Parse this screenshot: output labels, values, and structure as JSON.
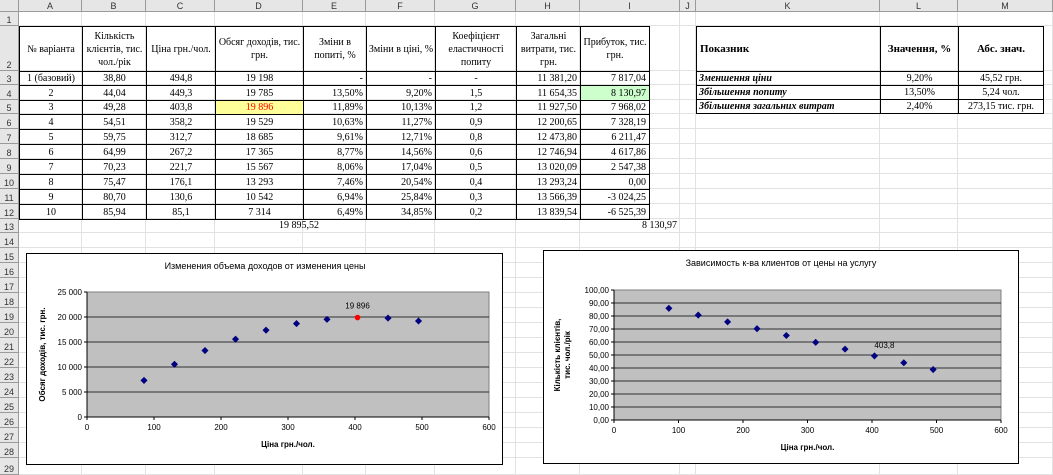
{
  "columns": [
    "A",
    "B",
    "C",
    "D",
    "E",
    "F",
    "G",
    "H",
    "I",
    "J",
    "K",
    "L",
    "M"
  ],
  "rows": [
    "1",
    "2",
    "3",
    "4",
    "5",
    "6",
    "7",
    "8",
    "9",
    "10",
    "11",
    "12",
    "13",
    "14",
    "15",
    "16",
    "17",
    "18",
    "19",
    "20",
    "21",
    "22",
    "23",
    "24",
    "25",
    "26",
    "27",
    "28",
    "29"
  ],
  "main_table": {
    "headers": [
      "№ варіанта",
      "Кількість клієнтів, тис. чол./рік",
      "Ціна грн./чол.",
      "Обсяг доходів, тис. грн.",
      "Зміни в попиті, %",
      "Зміни в ціні, %",
      "Коефіцієнт еластичності попиту",
      "Загальні витрати, тис. грн.",
      "Прибуток, тис. грн."
    ],
    "rows": [
      [
        "1 (базовий)",
        "38,80",
        "494,8",
        "19 198",
        "-",
        "-",
        "-",
        "11 381,20",
        "7 817,04"
      ],
      [
        "2",
        "44,04",
        "449,3",
        "19 785",
        "13,50%",
        "9,20%",
        "1,5",
        "11 654,35",
        "8 130,97"
      ],
      [
        "3",
        "49,28",
        "403,8",
        "19 896",
        "11,89%",
        "10,13%",
        "1,2",
        "11 927,50",
        "7 968,02"
      ],
      [
        "4",
        "54,51",
        "358,2",
        "19 529",
        "10,63%",
        "11,27%",
        "0,9",
        "12 200,65",
        "7 328,19"
      ],
      [
        "5",
        "59,75",
        "312,7",
        "18 685",
        "9,61%",
        "12,71%",
        "0,8",
        "12 473,80",
        "6 211,47"
      ],
      [
        "6",
        "64,99",
        "267,2",
        "17 365",
        "8,77%",
        "14,56%",
        "0,6",
        "12 746,94",
        "4 617,86"
      ],
      [
        "7",
        "70,23",
        "221,7",
        "15 567",
        "8,06%",
        "17,04%",
        "0,5",
        "13 020,09",
        "2 547,38"
      ],
      [
        "8",
        "75,47",
        "176,1",
        "13 293",
        "7,46%",
        "20,54%",
        "0,4",
        "13 293,24",
        "0,00"
      ],
      [
        "9",
        "80,70",
        "130,6",
        "10 542",
        "6,94%",
        "25,84%",
        "0,3",
        "13 566,39",
        "-3 024,25"
      ],
      [
        "10",
        "85,94",
        "85,1",
        "7 314",
        "6,49%",
        "34,85%",
        "0,2",
        "13 839,54",
        "-6 525,39"
      ]
    ],
    "totals": {
      "income": "19 895,52",
      "profit": "8 130,97"
    },
    "highlight_income_color": "#ffff99",
    "highlight_income_text": "#ff0000",
    "highlight_profit_color": "#ccffcc"
  },
  "side_table": {
    "headers": [
      "Показник",
      "Значення, %",
      "Абс. знач."
    ],
    "rows": [
      [
        "Зменшення ціни",
        "9,20%",
        "45,52 грн."
      ],
      [
        "Збільшення попиту",
        "13,50%",
        "5,24 чол."
      ],
      [
        "Збільшення загальних витрат",
        "2,40%",
        "273,15 тис. грн."
      ]
    ]
  },
  "chart_data": [
    {
      "type": "scatter",
      "title": "Изменения объема доходов от изменения цены",
      "xlabel": "Ціна грн./чол.",
      "ylabel": "Обсяг доходів, тис. грн.",
      "xlim": [
        0,
        600
      ],
      "ylim": [
        0,
        25000
      ],
      "x_ticks": [
        "0",
        "100",
        "200",
        "300",
        "400",
        "500",
        "600"
      ],
      "y_ticks": [
        "0",
        "5 000",
        "10 000",
        "15 000",
        "20 000",
        "25 000"
      ],
      "grid": true,
      "points": [
        {
          "x": 494.8,
          "y": 19198
        },
        {
          "x": 449.3,
          "y": 19785
        },
        {
          "x": 403.8,
          "y": 19896
        },
        {
          "x": 358.2,
          "y": 19529
        },
        {
          "x": 312.7,
          "y": 18685
        },
        {
          "x": 267.2,
          "y": 17365
        },
        {
          "x": 221.7,
          "y": 15567
        },
        {
          "x": 176.1,
          "y": 13293
        },
        {
          "x": 130.6,
          "y": 10542
        },
        {
          "x": 85.1,
          "y": 7314
        }
      ],
      "highlight_index": 2,
      "highlight_label": "19 896",
      "point_color": "#000080",
      "highlight_color": "#ff0000",
      "plot_bg": "#c0c0c0"
    },
    {
      "type": "scatter",
      "title": "Зависимость к-ва клиентов от цены на услугу",
      "xlabel": "Ціна грн./чол.",
      "ylabel": "Кількість клієнтів, тис. чол./рік",
      "xlim": [
        0,
        600
      ],
      "ylim": [
        0,
        100
      ],
      "x_ticks": [
        "0",
        "100",
        "200",
        "300",
        "400",
        "500",
        "600"
      ],
      "y_ticks": [
        "0,00",
        "10,00",
        "20,00",
        "30,00",
        "40,00",
        "50,00",
        "60,00",
        "70,00",
        "80,00",
        "90,00",
        "100,00"
      ],
      "grid": true,
      "points": [
        {
          "x": 494.8,
          "y": 38.8
        },
        {
          "x": 449.3,
          "y": 44.04
        },
        {
          "x": 403.8,
          "y": 49.28
        },
        {
          "x": 358.2,
          "y": 54.51
        },
        {
          "x": 312.7,
          "y": 59.75
        },
        {
          "x": 267.2,
          "y": 64.99
        },
        {
          "x": 221.7,
          "y": 70.23
        },
        {
          "x": 176.1,
          "y": 75.47
        },
        {
          "x": 130.6,
          "y": 80.7
        },
        {
          "x": 85.1,
          "y": 85.94
        }
      ],
      "highlight_index": 2,
      "highlight_label": "403,8",
      "point_color": "#000080",
      "plot_bg": "#c0c0c0"
    }
  ]
}
